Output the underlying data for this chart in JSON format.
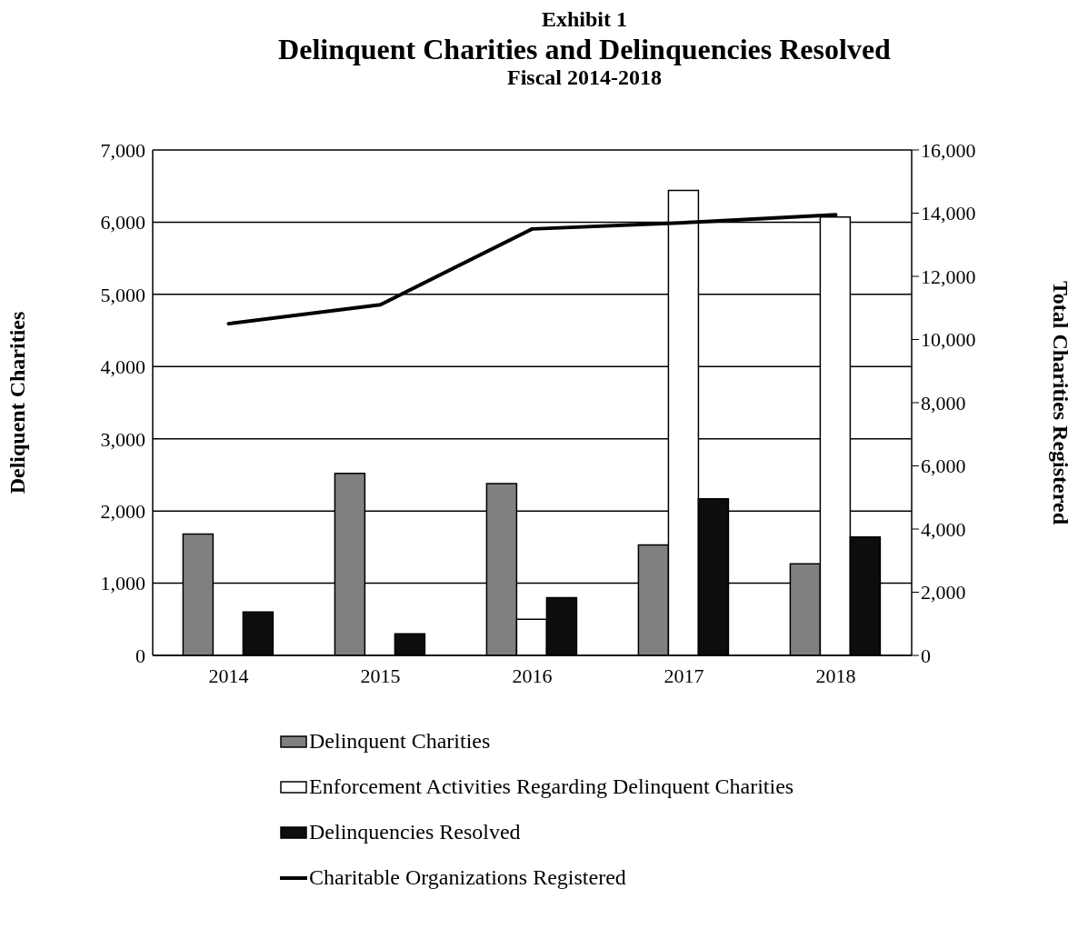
{
  "chart_data": {
    "type": "bar",
    "title": "Delinquent Charities and Delinquencies Resolved",
    "subtitle": "Fiscal 2014-2018",
    "annotations": [
      "Exhibit 1"
    ],
    "ylabel": "Deliquent Charities",
    "y2label": "Total Charities Registered",
    "categories": [
      "2014",
      "2015",
      "2016",
      "2017",
      "2018"
    ],
    "series": [
      {
        "name": "Delinquent Charities",
        "color": "#808080",
        "values": [
          1680,
          2520,
          2380,
          1530,
          1270
        ]
      },
      {
        "name": "Enforcement Activities Regarding Delinquent Charities",
        "color": "#ffffff",
        "values": [
          null,
          null,
          500,
          6440,
          6070
        ]
      },
      {
        "name": "Delinquencies Resolved",
        "color": "#0d0d0d",
        "values": [
          600,
          300,
          800,
          2170,
          1640
        ]
      },
      {
        "name": "Charitable Organizations Registered",
        "type": "line",
        "axis": "y2",
        "color": "#000000",
        "values": [
          10500,
          11100,
          13500,
          13700,
          13950
        ]
      }
    ],
    "ylim": [
      0,
      7000
    ],
    "yticks": [
      0,
      {
        "value": 1000,
        "label": "1,000"
      },
      {
        "value": 2000,
        "label": "2,000"
      },
      {
        "value": 3000,
        "label": "3,000"
      },
      {
        "value": 4000,
        "label": "4,000"
      },
      {
        "value": 5000,
        "label": "5,000"
      },
      {
        "value": 6000,
        "label": "6,000"
      },
      {
        "value": 7000,
        "label": "7,000"
      }
    ],
    "y2lim": [
      0,
      16000
    ],
    "y2ticks": [
      0,
      {
        "value": 2000,
        "label": "2,000"
      },
      {
        "value": 4000,
        "label": "4,000"
      },
      {
        "value": 6000,
        "label": "6,000"
      },
      {
        "value": 8000,
        "label": "8,000"
      },
      {
        "value": 10000,
        "label": "10,000"
      },
      {
        "value": 12000,
        "label": "12,000"
      },
      {
        "value": 14000,
        "label": "14,000"
      },
      {
        "value": 16000,
        "label": "16,000"
      }
    ],
    "grid": "y",
    "legend": "bottom",
    "marker": "none",
    "line_style": "solid"
  }
}
